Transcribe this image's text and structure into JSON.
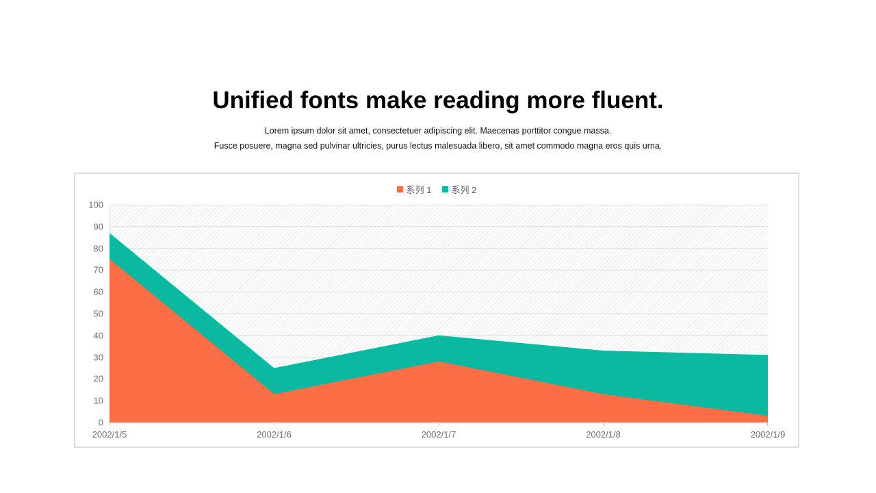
{
  "header": {
    "title": "Unified fonts make reading more fluent.",
    "subtitle_line1": "Lorem ipsum dolor sit amet, consectetuer adipiscing elit. Maecenas porttitor congue massa.",
    "subtitle_line2": "Fusce posuere, magna sed pulvinar ultricies, purus lectus malesuada libero, sit amet commodo magna eros quis urna."
  },
  "chart_data": {
    "type": "area",
    "stacked": true,
    "title": "",
    "xlabel": "",
    "ylabel": "",
    "categories": [
      "2002/1/5",
      "2002/1/6",
      "2002/1/7",
      "2002/1/8",
      "2002/1/9"
    ],
    "series": [
      {
        "name": "系列 1",
        "color": "#FC6E45",
        "values": [
          75,
          13,
          28,
          13,
          3
        ]
      },
      {
        "name": "系列 2",
        "color": "#0BB9A0",
        "values": [
          12,
          12,
          12,
          20,
          28
        ]
      }
    ],
    "ylim": [
      0,
      100
    ],
    "ytick_step": 10,
    "grid": true,
    "legend_position": "top-center",
    "plot_background": "diagonal-hatch",
    "colors": {
      "gridline": "#d9d9d9",
      "axis_line": "#c9c9c9",
      "tick_label": "#6e6e6e",
      "legend_text": "#595959",
      "card_border": "#dcdcdc"
    }
  }
}
